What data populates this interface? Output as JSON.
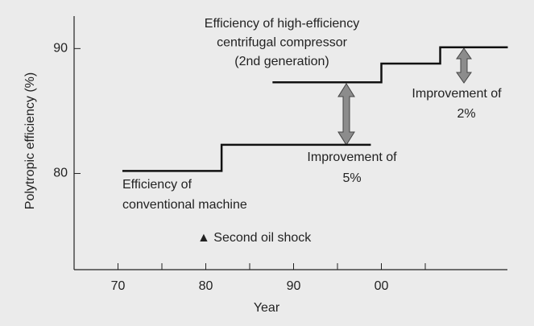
{
  "chart_data": {
    "type": "line",
    "xlabel": "Year",
    "ylabel": "Polytropic efficiency (%)",
    "xlim": [
      1965,
      2015
    ],
    "ylim": [
      72.3,
      92.6
    ],
    "xticks": [
      {
        "value": 1970,
        "label": "70"
      },
      {
        "value": 1980,
        "label": "80"
      },
      {
        "value": 1990,
        "label": "90"
      },
      {
        "value": 2000,
        "label": "00"
      }
    ],
    "xminor_ticks": [
      1975,
      1985,
      1995,
      2005
    ],
    "yticks": [
      80,
      90
    ],
    "color": "#111111",
    "series": [
      {
        "name": "Efficiency of conventional machine",
        "x": [
          1970.5,
          1981.8,
          1981.8,
          1998.8
        ],
        "values": [
          80.2,
          80.2,
          82.3,
          82.3
        ]
      },
      {
        "name": "Efficiency of high-efficiency centrifugal compressor (2nd generation)",
        "x": [
          1987.6,
          2000.0,
          2000.0,
          2006.7,
          2006.7,
          2014.4
        ],
        "values": [
          87.3,
          87.3,
          88.8,
          88.8,
          90.1,
          90.1
        ]
      }
    ],
    "annotations": [
      [
        "Efficiency of high-efficiency",
        "centrifugal compressor",
        "(2nd generation)"
      ],
      [
        "Improvement of",
        "2%"
      ],
      [
        "Improvement of",
        "5%"
      ],
      [
        "Efficiency of",
        "conventional machine"
      ],
      [
        "▲ Second oil shock"
      ]
    ]
  }
}
